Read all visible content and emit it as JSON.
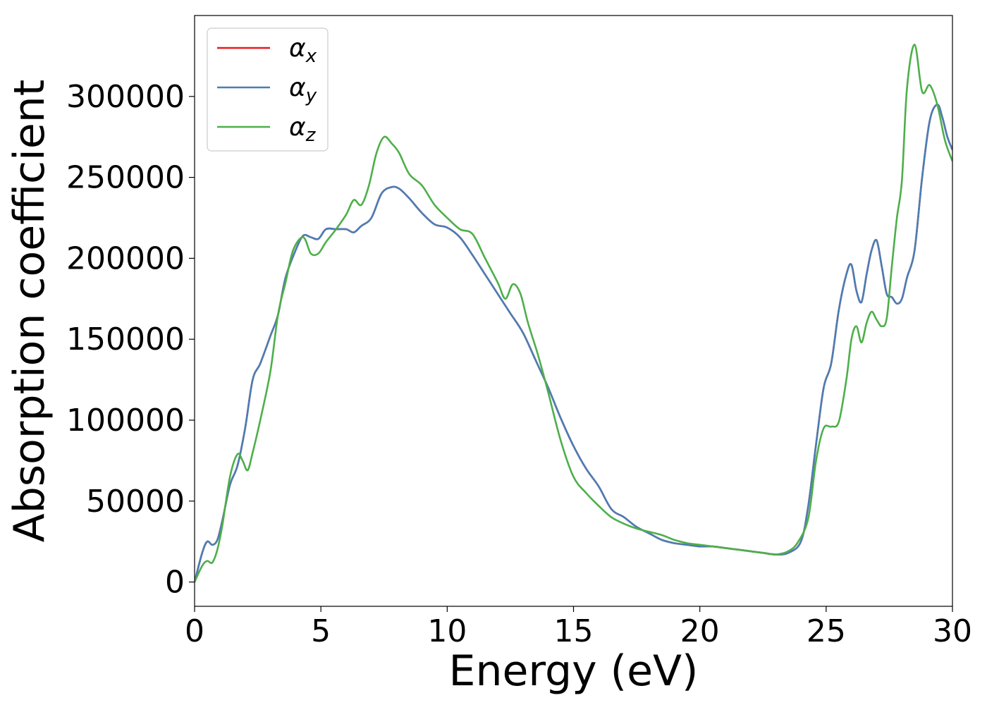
{
  "chart_data": {
    "type": "line",
    "title": "",
    "xlabel": "Energy (eV)",
    "ylabel": "Absorption coefficient",
    "xlim": [
      0,
      30
    ],
    "ylim": [
      -15000,
      350000
    ],
    "xticks": [
      0,
      5,
      10,
      15,
      20,
      25,
      30
    ],
    "yticks": [
      0,
      50000,
      100000,
      150000,
      200000,
      250000,
      300000
    ],
    "grid": false,
    "legend_position": "top-left",
    "series": [
      {
        "name": "α",
        "subscript": "x",
        "color": "#e41a1c",
        "x": [
          0,
          0.3,
          0.5,
          0.7,
          0.9,
          1.1,
          1.4,
          1.7,
          2.0,
          2.3,
          2.6,
          3.0,
          3.3,
          3.6,
          4.0,
          4.3,
          4.6,
          4.9,
          5.2,
          5.6,
          6.0,
          6.3,
          6.6,
          7.0,
          7.4,
          7.8,
          8.1,
          8.5,
          9.0,
          9.5,
          10.0,
          10.5,
          11.0,
          11.5,
          12.0,
          12.5,
          13.0,
          13.5,
          14.0,
          14.5,
          15.0,
          15.5,
          16.0,
          16.5,
          17.0,
          17.5,
          18.0,
          18.5,
          19.0,
          19.5,
          20.0,
          20.5,
          21.0,
          21.5,
          22.0,
          22.5,
          23.0,
          23.5,
          24.0,
          24.3,
          24.6,
          24.9,
          25.2,
          25.5,
          25.8,
          26.0,
          26.2,
          26.4,
          26.6,
          26.8,
          27.0,
          27.2,
          27.4,
          27.6,
          27.8,
          28.0,
          28.2,
          28.5,
          28.8,
          29.1,
          29.4,
          29.6,
          29.8,
          30.0
        ],
        "y": [
          0,
          18000,
          25000,
          23000,
          26000,
          38000,
          60000,
          72000,
          95000,
          125000,
          135000,
          152000,
          165000,
          188000,
          205000,
          214000,
          213000,
          212000,
          218000,
          218000,
          218000,
          216000,
          220000,
          225000,
          240000,
          244000,
          243000,
          237000,
          228000,
          221000,
          219000,
          213000,
          202000,
          190000,
          178000,
          166000,
          154000,
          137000,
          120000,
          101000,
          84000,
          70000,
          59000,
          45000,
          40000,
          34000,
          30000,
          26000,
          24000,
          23000,
          22000,
          22000,
          21000,
          20000,
          19000,
          18000,
          17000,
          18000,
          25000,
          48000,
          85000,
          120000,
          135000,
          168000,
          190000,
          196000,
          180000,
          173000,
          190000,
          205000,
          211000,
          195000,
          178000,
          176000,
          172000,
          175000,
          188000,
          205000,
          250000,
          285000,
          295000,
          287000,
          275000,
          267000
        ]
      },
      {
        "name": "α",
        "subscript": "y",
        "color": "#4a7eb6",
        "x": [
          0,
          0.3,
          0.5,
          0.7,
          0.9,
          1.1,
          1.4,
          1.7,
          2.0,
          2.3,
          2.6,
          3.0,
          3.3,
          3.6,
          4.0,
          4.3,
          4.6,
          4.9,
          5.2,
          5.6,
          6.0,
          6.3,
          6.6,
          7.0,
          7.4,
          7.8,
          8.1,
          8.5,
          9.0,
          9.5,
          10.0,
          10.5,
          11.0,
          11.5,
          12.0,
          12.5,
          13.0,
          13.5,
          14.0,
          14.5,
          15.0,
          15.5,
          16.0,
          16.5,
          17.0,
          17.5,
          18.0,
          18.5,
          19.0,
          19.5,
          20.0,
          20.5,
          21.0,
          21.5,
          22.0,
          22.5,
          23.0,
          23.5,
          24.0,
          24.3,
          24.6,
          24.9,
          25.2,
          25.5,
          25.8,
          26.0,
          26.2,
          26.4,
          26.6,
          26.8,
          27.0,
          27.2,
          27.4,
          27.6,
          27.8,
          28.0,
          28.2,
          28.5,
          28.8,
          29.1,
          29.4,
          29.6,
          29.8,
          30.0
        ],
        "y": [
          0,
          18000,
          25000,
          23000,
          26000,
          38000,
          60000,
          72000,
          95000,
          125000,
          135000,
          152000,
          165000,
          188000,
          205000,
          214000,
          213000,
          212000,
          218000,
          218000,
          218000,
          216000,
          220000,
          225000,
          240000,
          244000,
          243000,
          237000,
          228000,
          221000,
          219000,
          213000,
          202000,
          190000,
          178000,
          166000,
          154000,
          137000,
          120000,
          101000,
          84000,
          70000,
          59000,
          45000,
          40000,
          34000,
          30000,
          26000,
          24000,
          23000,
          22000,
          22000,
          21000,
          20000,
          19000,
          18000,
          17000,
          18000,
          25000,
          48000,
          85000,
          120000,
          135000,
          168000,
          190000,
          196000,
          180000,
          173000,
          190000,
          205000,
          211000,
          195000,
          178000,
          176000,
          172000,
          175000,
          188000,
          205000,
          250000,
          285000,
          295000,
          287000,
          275000,
          267000
        ]
      },
      {
        "name": "α",
        "subscript": "z",
        "color": "#4daf4a",
        "x": [
          0,
          0.3,
          0.5,
          0.7,
          0.9,
          1.1,
          1.4,
          1.7,
          1.9,
          2.1,
          2.3,
          2.6,
          3.0,
          3.3,
          3.6,
          3.9,
          4.3,
          4.6,
          4.9,
          5.2,
          5.6,
          6.0,
          6.3,
          6.6,
          6.9,
          7.2,
          7.5,
          7.8,
          8.1,
          8.5,
          9.0,
          9.5,
          10.0,
          10.5,
          11.0,
          11.5,
          12.0,
          12.3,
          12.6,
          12.9,
          13.2,
          13.6,
          14.0,
          14.5,
          15.0,
          15.5,
          16.0,
          16.5,
          17.0,
          17.5,
          18.0,
          18.5,
          19.0,
          19.5,
          20.0,
          20.5,
          21.0,
          21.5,
          22.0,
          22.5,
          23.0,
          23.5,
          23.9,
          24.3,
          24.6,
          24.9,
          25.2,
          25.5,
          25.8,
          26.0,
          26.2,
          26.4,
          26.6,
          26.8,
          27.0,
          27.2,
          27.4,
          27.6,
          27.8,
          28.0,
          28.2,
          28.5,
          28.8,
          29.1,
          29.4,
          29.7,
          30.0
        ],
        "y": [
          0,
          10000,
          13000,
          12000,
          20000,
          35000,
          65000,
          79000,
          75000,
          69000,
          80000,
          100000,
          130000,
          165000,
          185000,
          205000,
          213000,
          203000,
          203000,
          210000,
          218000,
          227000,
          236000,
          233000,
          245000,
          265000,
          275000,
          271000,
          265000,
          252000,
          245000,
          233000,
          225000,
          218000,
          215000,
          200000,
          185000,
          175000,
          184000,
          178000,
          160000,
          140000,
          117000,
          87000,
          65000,
          55000,
          47000,
          40000,
          36000,
          33000,
          31000,
          29000,
          26000,
          24000,
          23000,
          22000,
          21000,
          20000,
          19000,
          18000,
          17000,
          19000,
          25000,
          40000,
          75000,
          95000,
          96000,
          99000,
          125000,
          150000,
          158000,
          148000,
          160000,
          167000,
          162000,
          158000,
          163000,
          195000,
          225000,
          248000,
          305000,
          332000,
          303000,
          307000,
          295000,
          273000,
          260000
        ]
      }
    ]
  }
}
